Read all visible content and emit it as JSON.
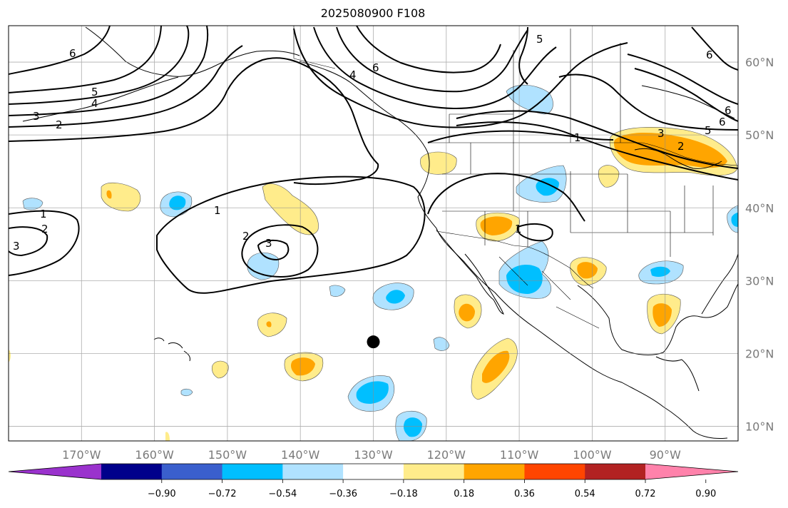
{
  "title": "2025080900 F108",
  "map": {
    "projection": "plate carree",
    "lon_range": [
      -180,
      -80
    ],
    "lat_range": [
      8,
      65
    ],
    "grid": true,
    "longitude_labels": [
      "170°W",
      "160°W",
      "150°W",
      "140°W",
      "130°W",
      "120°W",
      "110°W",
      "100°W",
      "90°W"
    ],
    "longitude_values": [
      -170,
      -160,
      -150,
      -140,
      -130,
      -120,
      -110,
      -100,
      -90
    ],
    "latitude_labels": [
      "60°N",
      "50°N",
      "40°N",
      "30°N",
      "20°N",
      "10°N"
    ],
    "latitude_values": [
      60,
      50,
      40,
      30,
      20,
      10
    ],
    "marker": {
      "name": "black-dot",
      "lon": -130,
      "lat": 21.6,
      "color": "#000000"
    },
    "contour_line_labels": [
      "6",
      "5",
      "4",
      "3",
      "2",
      "1",
      "2",
      "3",
      "1",
      "1",
      "1",
      "2",
      "3",
      "4",
      "5",
      "6",
      "3",
      "2",
      "5",
      "6",
      "6",
      "6",
      "1",
      "5",
      "3",
      "2",
      "1"
    ]
  },
  "colorbar": {
    "tick_labels": [
      "−0.90",
      "−0.72",
      "−0.54",
      "−0.36",
      "−0.18",
      "0.18",
      "0.36",
      "0.54",
      "0.72",
      "0.90"
    ],
    "tick_values": [
      -0.9,
      -0.72,
      -0.54,
      -0.36,
      -0.18,
      0.18,
      0.36,
      0.54,
      0.72,
      0.9
    ],
    "colors": [
      "#9a32cd",
      "#00008b",
      "#3a5fcd",
      "#00bfff",
      "#b0e2ff",
      "#ffffff",
      "#ffec8b",
      "#ffa500",
      "#ff4500",
      "#b22222",
      "#ff82ab"
    ]
  }
}
